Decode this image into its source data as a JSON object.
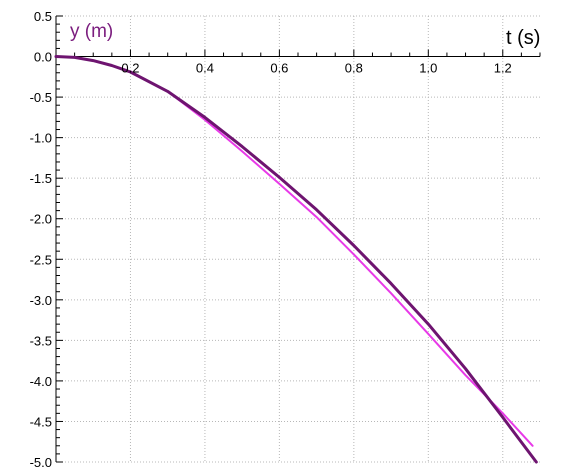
{
  "chart_data": {
    "type": "line",
    "title": "",
    "xlabel": "t (s)",
    "ylabel": "y (m)",
    "xlim": [
      0.0,
      1.3
    ],
    "ylim": [
      -5.0,
      0.5
    ],
    "x_ticks": [
      0.2,
      0.4,
      0.6,
      0.8,
      1.0,
      1.2
    ],
    "x_tick_labels": [
      "0.2",
      "0.4",
      "0.6",
      "0.8",
      "1.0",
      "1.2"
    ],
    "y_ticks": [
      0.5,
      0.0,
      -0.5,
      -1.0,
      -1.5,
      -2.0,
      -2.5,
      -3.0,
      -3.5,
      -4.0,
      -4.5,
      -5.0
    ],
    "y_tick_labels": [
      "0.5",
      "0.0",
      "-0.5",
      "-1.0",
      "-1.5",
      "-2.0",
      "-2.5",
      "-3.0",
      "-3.5",
      "-4.0",
      "-4.5",
      "-5.0"
    ],
    "grid": true,
    "legend": "none",
    "colors": {
      "series_dark": "#6e1470",
      "series_light": "#e83ae8",
      "grid": "#b8b8b8",
      "axis": "#000000",
      "ylabel": "#7b1d7e"
    },
    "series": [
      {
        "color": "#6e1470",
        "x": [
          0.0,
          0.05,
          0.1,
          0.15,
          0.2,
          0.3,
          0.4,
          0.5,
          0.6,
          0.7,
          0.8,
          0.9,
          1.0,
          1.1,
          1.2,
          1.29
        ],
        "y": [
          0.0,
          -0.01,
          -0.05,
          -0.11,
          -0.19,
          -0.43,
          -0.75,
          -1.11,
          -1.49,
          -1.89,
          -2.33,
          -2.8,
          -3.3,
          -3.85,
          -4.45,
          -5.0
        ]
      },
      {
        "color": "#e83ae8",
        "x": [
          0.0,
          0.05,
          0.1,
          0.15,
          0.2,
          0.3,
          0.4,
          0.5,
          0.6,
          0.7,
          0.8,
          0.9,
          1.0,
          1.1,
          1.2,
          1.28
        ],
        "y": [
          0.0,
          -0.01,
          -0.05,
          -0.11,
          -0.19,
          -0.43,
          -0.78,
          -1.17,
          -1.57,
          -1.98,
          -2.44,
          -2.92,
          -3.42,
          -3.93,
          -4.4,
          -4.8
        ]
      }
    ]
  }
}
